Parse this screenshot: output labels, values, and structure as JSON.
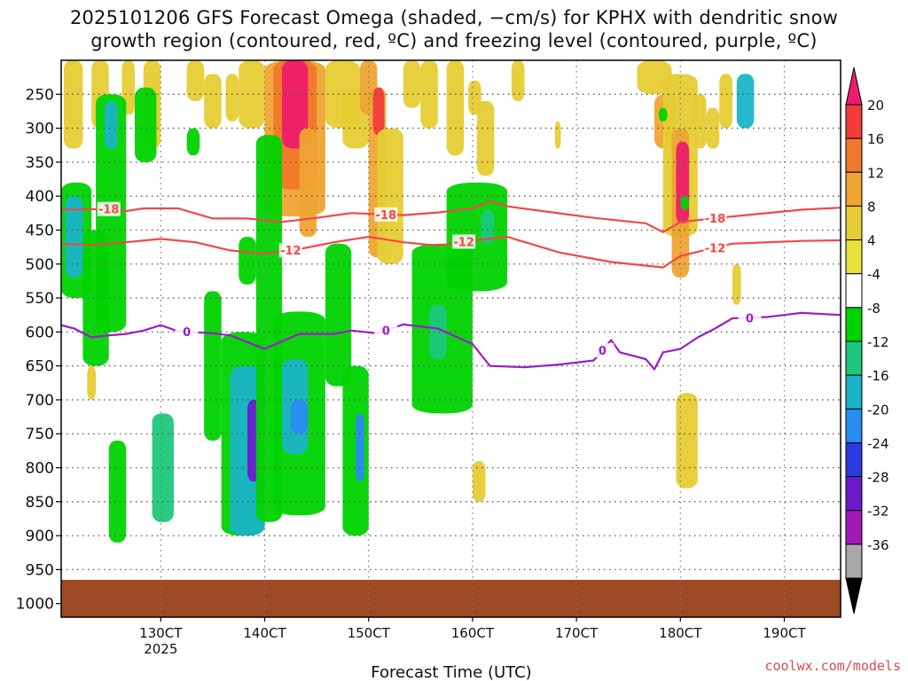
{
  "chart_data": {
    "type": "heatmap",
    "title_line1": "2025101206 GFS Forecast Omega (shaded, −cm/s) for KPHX with dendritic snow",
    "title_line2": "growth region (contoured, red, ºC) and freezing level (contoured, purple, ºC)",
    "xlabel": "Forecast Time (UTC)",
    "ylabel": "",
    "x_ticks": [
      {
        "hour": 30,
        "label": "130CT"
      },
      {
        "hour": 42,
        "label": "140CT"
      },
      {
        "hour": 54,
        "label": "150CT"
      },
      {
        "hour": 66,
        "label": "160CT"
      },
      {
        "hour": 78,
        "label": "170CT"
      },
      {
        "hour": 90,
        "label": "180CT"
      },
      {
        "hour": 102,
        "label": "190CT"
      }
    ],
    "x_year_label": "2025",
    "xlim": [
      18.5,
      108.5
    ],
    "y_ticks": [
      250,
      300,
      350,
      400,
      450,
      500,
      550,
      600,
      650,
      700,
      750,
      800,
      850,
      900,
      950,
      1000
    ],
    "ylim": [
      200,
      1020
    ],
    "terrain_pressure": 965,
    "colorbar": {
      "levels": [
        "20",
        "16",
        "12",
        "8",
        "4",
        "-4",
        "-8",
        "-12",
        "-16",
        "-20",
        "-24",
        "-28",
        "-32",
        "-36"
      ],
      "colors": [
        "#ee1c6c",
        "#f23c3c",
        "#f0782a",
        "#eea432",
        "#e6cc34",
        "#e8e23a",
        "#ffffff",
        "#00d300",
        "#1ec87c",
        "#1ab4c8",
        "#2a8cf0",
        "#2a3ce0",
        "#6a1ccc",
        "#a01ab8",
        "#a8a8a8",
        "#000000"
      ]
    },
    "contours": [
      {
        "name": "-18 °C isotherm",
        "label": "-18",
        "color": "#f04848",
        "label_at_hours": [
          24,
          56,
          94
        ],
        "points": [
          [
            18.5,
            420
          ],
          [
            24,
            419
          ],
          [
            26,
            422
          ],
          [
            28,
            418
          ],
          [
            32,
            418
          ],
          [
            36,
            433
          ],
          [
            40,
            433
          ],
          [
            44,
            438
          ],
          [
            48,
            432
          ],
          [
            52,
            425
          ],
          [
            58,
            428
          ],
          [
            62,
            424
          ],
          [
            66,
            418
          ],
          [
            68,
            407
          ],
          [
            70,
            415
          ],
          [
            74,
            422
          ],
          [
            80,
            432
          ],
          [
            86,
            440
          ],
          [
            88,
            453
          ],
          [
            90,
            438
          ],
          [
            96,
            430
          ],
          [
            104,
            420
          ],
          [
            108.5,
            417
          ]
        ]
      },
      {
        "name": "-12 °C isotherm",
        "label": "-12",
        "color": "#f04848",
        "label_at_hours": [
          45,
          65,
          94
        ],
        "points": [
          [
            18.5,
            470
          ],
          [
            22,
            472
          ],
          [
            26,
            468
          ],
          [
            30,
            463
          ],
          [
            34,
            468
          ],
          [
            38,
            480
          ],
          [
            42,
            485
          ],
          [
            46,
            478
          ],
          [
            50,
            468
          ],
          [
            54,
            460
          ],
          [
            58,
            468
          ],
          [
            62,
            473
          ],
          [
            66,
            465
          ],
          [
            70,
            460
          ],
          [
            76,
            483
          ],
          [
            82,
            497
          ],
          [
            88,
            505
          ],
          [
            90,
            488
          ],
          [
            96,
            470
          ],
          [
            104,
            466
          ],
          [
            108.5,
            465
          ]
        ]
      },
      {
        "name": "0 °C freezing level",
        "label": "0",
        "color": "#9a1ec8",
        "label_at_hours": [
          33,
          56,
          81,
          98
        ],
        "points": [
          [
            18.5,
            590
          ],
          [
            20,
            595
          ],
          [
            22,
            608
          ],
          [
            24,
            605
          ],
          [
            26,
            603
          ],
          [
            28,
            598
          ],
          [
            30,
            590
          ],
          [
            32,
            599
          ],
          [
            36,
            602
          ],
          [
            38,
            605
          ],
          [
            42,
            625
          ],
          [
            46,
            603
          ],
          [
            50,
            603
          ],
          [
            52,
            598
          ],
          [
            55,
            602
          ],
          [
            58,
            589
          ],
          [
            62,
            595
          ],
          [
            66,
            618
          ],
          [
            68,
            650
          ],
          [
            72,
            652
          ],
          [
            76,
            648
          ],
          [
            80,
            642
          ],
          [
            82,
            612
          ],
          [
            83,
            630
          ],
          [
            86,
            640
          ],
          [
            87,
            655
          ],
          [
            88,
            630
          ],
          [
            90,
            625
          ],
          [
            92,
            608
          ],
          [
            94,
            595
          ],
          [
            96,
            580
          ],
          [
            100,
            578
          ],
          [
            104,
            572
          ],
          [
            108.5,
            575
          ]
        ]
      }
    ],
    "omega_regions": [
      {
        "name": "upward motion max near 140CT upper levels",
        "value": 20,
        "hours": [
          44,
          47
        ],
        "pressure": [
          200,
          330
        ]
      },
      {
        "name": "upward motion max near 180CT",
        "value": 20,
        "hours": [
          89.5,
          91
        ],
        "pressure": [
          320,
          440
        ]
      },
      {
        "name": "downward motion max near 140CT low levels",
        "value": -28,
        "hours": [
          40,
          41.5
        ],
        "pressure": [
          700,
          820
        ]
      }
    ]
  },
  "credit": "coolwx.com/models"
}
